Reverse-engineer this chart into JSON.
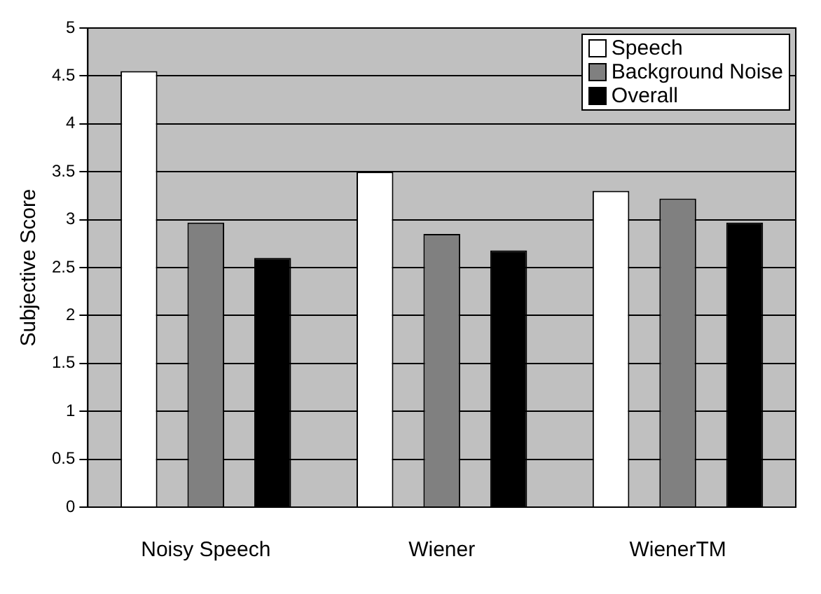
{
  "chart_data": {
    "type": "bar",
    "ylabel": "Subjective Score",
    "categories": [
      "Noisy Speech",
      "Wiener",
      "WienerTM"
    ],
    "series": [
      {
        "name": "Speech",
        "color": "#ffffff",
        "values": [
          4.55,
          3.5,
          3.3
        ]
      },
      {
        "name": "Background Noise",
        "color": "#808080",
        "values": [
          2.97,
          2.85,
          3.22
        ]
      },
      {
        "name": "Overall",
        "color": "#000000",
        "values": [
          2.6,
          2.68,
          2.97
        ]
      }
    ],
    "ylim": [
      0,
      5
    ],
    "yticks": [
      0,
      0.5,
      1,
      1.5,
      2,
      2.5,
      3,
      3.5,
      4,
      4.5,
      5
    ],
    "grid": "y",
    "legend": "top right"
  }
}
